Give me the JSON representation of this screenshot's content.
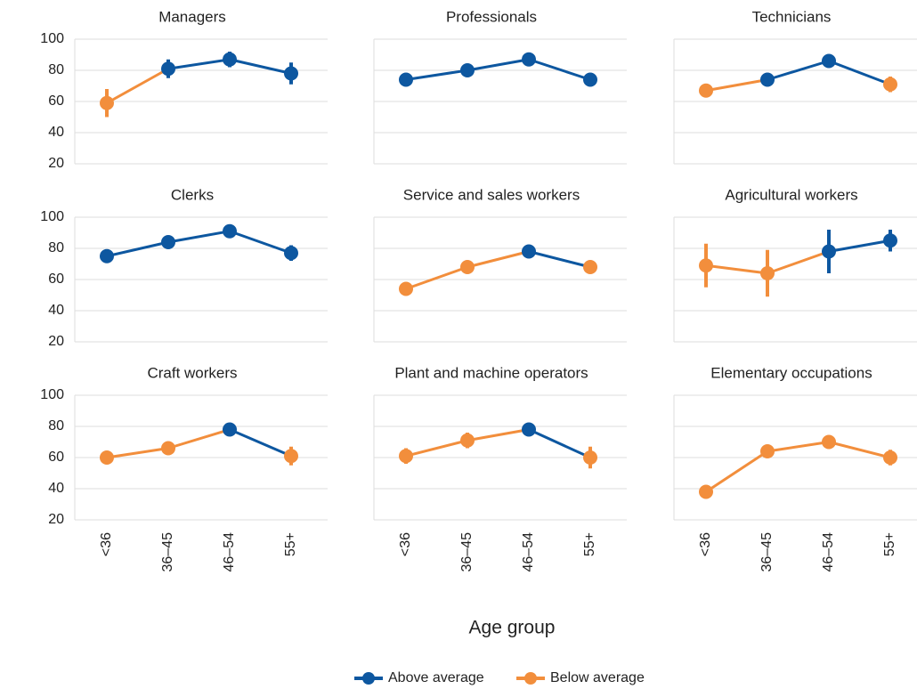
{
  "chart_data": [
    {
      "type": "line",
      "title": "Managers",
      "categories": [
        "<36",
        "36–45",
        "46–54",
        "55+"
      ],
      "values": [
        59,
        81,
        87,
        78
      ],
      "errors": [
        9,
        6,
        5,
        7
      ],
      "colors": [
        "#f28e3c",
        "#0d57a0",
        "#0d57a0",
        "#0d57a0"
      ],
      "ylim": [
        20,
        100
      ],
      "yticks": [
        20,
        40,
        60,
        80,
        100
      ],
      "grid": true
    },
    {
      "type": "line",
      "title": "Professionals",
      "categories": [
        "<36",
        "36–45",
        "46–54",
        "55+"
      ],
      "values": [
        74,
        80,
        87,
        74
      ],
      "errors": [
        2,
        2,
        2,
        3
      ],
      "colors": [
        "#0d57a0",
        "#0d57a0",
        "#0d57a0",
        "#0d57a0"
      ],
      "ylim": [
        20,
        100
      ],
      "yticks": [
        20,
        40,
        60,
        80,
        100
      ],
      "grid": true
    },
    {
      "type": "line",
      "title": "Technicians",
      "categories": [
        "<36",
        "36–45",
        "46–54",
        "55+"
      ],
      "values": [
        67,
        74,
        86,
        71
      ],
      "errors": [
        3,
        3,
        2,
        5
      ],
      "colors": [
        "#f28e3c",
        "#0d57a0",
        "#0d57a0",
        "#f28e3c"
      ],
      "ylim": [
        20,
        100
      ],
      "yticks": [
        20,
        40,
        60,
        80,
        100
      ],
      "grid": true
    },
    {
      "type": "line",
      "title": "Clerks",
      "categories": [
        "<36",
        "36–45",
        "46–54",
        "55+"
      ],
      "values": [
        75,
        84,
        91,
        77
      ],
      "errors": [
        4,
        2,
        2,
        5
      ],
      "colors": [
        "#0d57a0",
        "#0d57a0",
        "#0d57a0",
        "#0d57a0"
      ],
      "ylim": [
        20,
        100
      ],
      "yticks": [
        20,
        40,
        60,
        80,
        100
      ],
      "grid": true
    },
    {
      "type": "line",
      "title": "Service and sales workers",
      "categories": [
        "<36",
        "36–45",
        "46–54",
        "55+"
      ],
      "values": [
        54,
        68,
        78,
        68
      ],
      "errors": [
        2,
        2,
        2,
        3
      ],
      "colors": [
        "#f28e3c",
        "#f28e3c",
        "#0d57a0",
        "#f28e3c"
      ],
      "ylim": [
        20,
        100
      ],
      "yticks": [
        20,
        40,
        60,
        80,
        100
      ],
      "grid": true
    },
    {
      "type": "line",
      "title": "Agricultural workers",
      "categories": [
        "<36",
        "36–45",
        "46–54",
        "55+"
      ],
      "values": [
        69,
        64,
        78,
        85
      ],
      "errors": [
        14,
        15,
        14,
        7
      ],
      "colors": [
        "#f28e3c",
        "#f28e3c",
        "#0d57a0",
        "#0d57a0"
      ],
      "ylim": [
        20,
        100
      ],
      "yticks": [
        20,
        40,
        60,
        80,
        100
      ],
      "grid": true
    },
    {
      "type": "line",
      "title": "Craft workers",
      "categories": [
        "<36",
        "36–45",
        "46–54",
        "55+"
      ],
      "values": [
        60,
        66,
        78,
        61
      ],
      "errors": [
        3,
        4,
        2,
        6
      ],
      "colors": [
        "#f28e3c",
        "#f28e3c",
        "#0d57a0",
        "#f28e3c"
      ],
      "ylim": [
        20,
        100
      ],
      "yticks": [
        20,
        40,
        60,
        80,
        100
      ],
      "grid": true
    },
    {
      "type": "line",
      "title": "Plant and machine operators",
      "categories": [
        "<36",
        "36–45",
        "46–54",
        "55+"
      ],
      "values": [
        61,
        71,
        78,
        60
      ],
      "errors": [
        5,
        5,
        4,
        7
      ],
      "colors": [
        "#f28e3c",
        "#f28e3c",
        "#0d57a0",
        "#f28e3c"
      ],
      "ylim": [
        20,
        100
      ],
      "yticks": [
        20,
        40,
        60,
        80,
        100
      ],
      "grid": true
    },
    {
      "type": "line",
      "title": "Elementary occupations",
      "categories": [
        "<36",
        "36–45",
        "46–54",
        "55+"
      ],
      "values": [
        38,
        64,
        70,
        60
      ],
      "errors": [
        4,
        4,
        3,
        5
      ],
      "colors": [
        "#f28e3c",
        "#f28e3c",
        "#f28e3c",
        "#f28e3c"
      ],
      "ylim": [
        20,
        100
      ],
      "yticks": [
        20,
        40,
        60,
        80,
        100
      ],
      "grid": true
    }
  ],
  "xlabel": "Age group",
  "legend": [
    {
      "name": "Above average",
      "color": "#0d57a0"
    },
    {
      "name": "Below average",
      "color": "#f28e3c"
    }
  ]
}
